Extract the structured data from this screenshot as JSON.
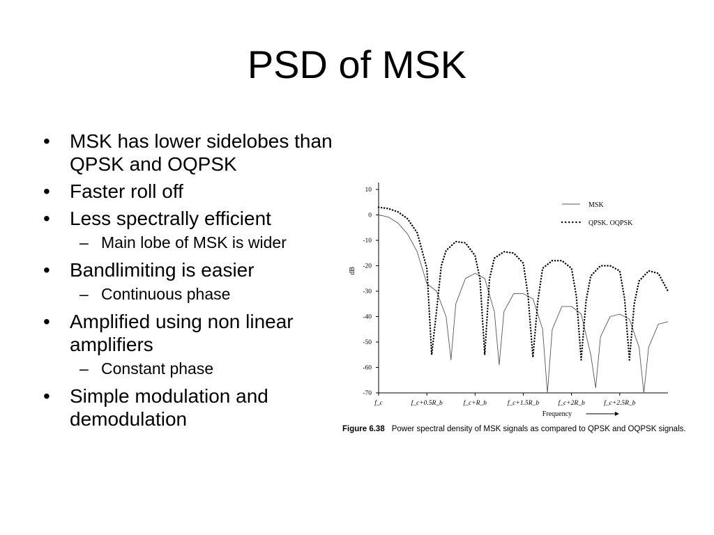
{
  "title": "PSD of MSK",
  "bullets": [
    {
      "level": 1,
      "text": "MSK has lower sidelobes than QPSK and OQPSK"
    },
    {
      "level": 1,
      "text": "Faster roll off"
    },
    {
      "level": 1,
      "text": "Less spectrally efficient"
    },
    {
      "level": 2,
      "text": "Main lobe of MSK is wider"
    },
    {
      "level": 1,
      "text": "Bandlimiting is easier"
    },
    {
      "level": 2,
      "text": "Continuous phase"
    },
    {
      "level": 1,
      "text": "Amplified using non linear amplifiers"
    },
    {
      "level": 2,
      "text": "Constant phase"
    },
    {
      "level": 1,
      "text": "Simple modulation and demodulation"
    }
  ],
  "figure": {
    "label": "Figure 6.38",
    "caption": "Power spectral density of MSK signals as compared to QPSK and OQPSK signals."
  },
  "chart_data": {
    "type": "line",
    "ylabel": "dB",
    "xlabel": "Frequency",
    "ylim": [
      -70,
      10
    ],
    "yticks": [
      10,
      0,
      -10,
      -20,
      -30,
      -40,
      -50,
      -60,
      -70
    ],
    "xlim": [
      0,
      3.0
    ],
    "x_unit": "R_b offset from f_c",
    "xtick_values": [
      0,
      0.5,
      1,
      1.5,
      2,
      2.5
    ],
    "xtick_labels": [
      "f_c",
      "f_c+0.5R_b",
      "f_c+R_b",
      "f_c+1.5R_b",
      "f_c+2R_b",
      "f_c+2.5R_b"
    ],
    "legend_position": "top-right",
    "series": [
      {
        "name": "MSK",
        "style": "solid",
        "x": [
          0,
          0.1,
          0.2,
          0.3,
          0.4,
          0.5,
          0.6,
          0.7,
          0.75,
          0.8,
          0.9,
          1.0,
          1.1,
          1.2,
          1.25,
          1.3,
          1.4,
          1.5,
          1.6,
          1.7,
          1.75,
          1.8,
          1.9,
          2.0,
          2.1,
          2.2,
          2.25,
          2.3,
          2.4,
          2.5,
          2.6,
          2.7,
          2.75,
          2.8,
          2.9,
          3.0
        ],
        "y": [
          0,
          -0.8,
          -3.2,
          -7.5,
          -14.5,
          -27,
          -30,
          -40,
          -57,
          -35,
          -25,
          -23,
          -25,
          -38,
          -59,
          -38,
          -31,
          -31,
          -33,
          -45,
          -70,
          -45,
          -36,
          -36,
          -39,
          -55,
          -68,
          -48,
          -40,
          -39,
          -41,
          -52,
          -70,
          -52,
          -43,
          -42
        ]
      },
      {
        "name": "QPSK. OQPSK",
        "style": "dotted",
        "x": [
          0,
          0.1,
          0.2,
          0.3,
          0.4,
          0.5,
          0.55,
          0.6,
          0.65,
          0.7,
          0.8,
          0.9,
          1.0,
          1.05,
          1.1,
          1.15,
          1.2,
          1.3,
          1.4,
          1.5,
          1.55,
          1.6,
          1.65,
          1.7,
          1.8,
          1.9,
          2.0,
          2.05,
          2.1,
          2.15,
          2.2,
          2.3,
          2.4,
          2.5,
          2.55,
          2.6,
          2.65,
          2.7,
          2.8,
          2.9,
          3.0
        ],
        "y": [
          3,
          2.5,
          1.2,
          -1.5,
          -7,
          -21,
          -55,
          -38,
          -20,
          -14,
          -10.5,
          -11,
          -16,
          -25,
          -55,
          -25,
          -17,
          -14.5,
          -15,
          -19,
          -32,
          -56,
          -34,
          -21,
          -18,
          -18,
          -21,
          -32,
          -57,
          -34,
          -24,
          -20,
          -20,
          -22,
          -33,
          -57,
          -35,
          -26,
          -22,
          -23,
          -30
        ]
      }
    ]
  }
}
